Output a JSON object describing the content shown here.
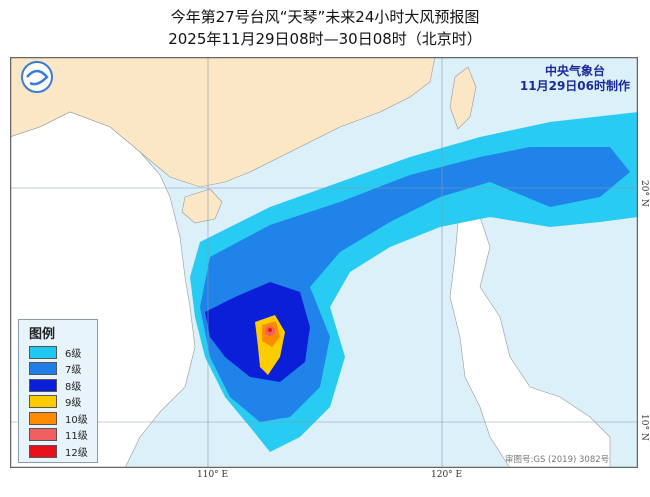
{
  "title": {
    "line1": "今年第27号台风“天琴”未来24小时大风预报图",
    "line2": "2025年11月29日08时—30日08时（北京时）"
  },
  "agency": {
    "name": "中央气象台",
    "issued": "11月29日06时制作"
  },
  "logo": "cma-logo-icon",
  "legend": {
    "title": "图例",
    "items": [
      {
        "label": "6级",
        "color": "#1ec8f0"
      },
      {
        "label": "7级",
        "color": "#1f7ee8"
      },
      {
        "label": "8级",
        "color": "#0b1fd8"
      },
      {
        "label": "9级",
        "color": "#ffcc00"
      },
      {
        "label": "10级",
        "color": "#ff8c00"
      },
      {
        "label": "11级",
        "color": "#f06060"
      },
      {
        "label": "12级",
        "color": "#e8101a"
      }
    ]
  },
  "axes": {
    "lon_labels": [
      "110° E",
      "120° E"
    ],
    "lat_labels": [
      "20° N",
      "10° N"
    ]
  },
  "review_number": "审图号:GS (2019) 3082号",
  "colors": {
    "sea": "#dcf0fa",
    "land": "#fbe6c6",
    "land_other": "#ffffff"
  }
}
